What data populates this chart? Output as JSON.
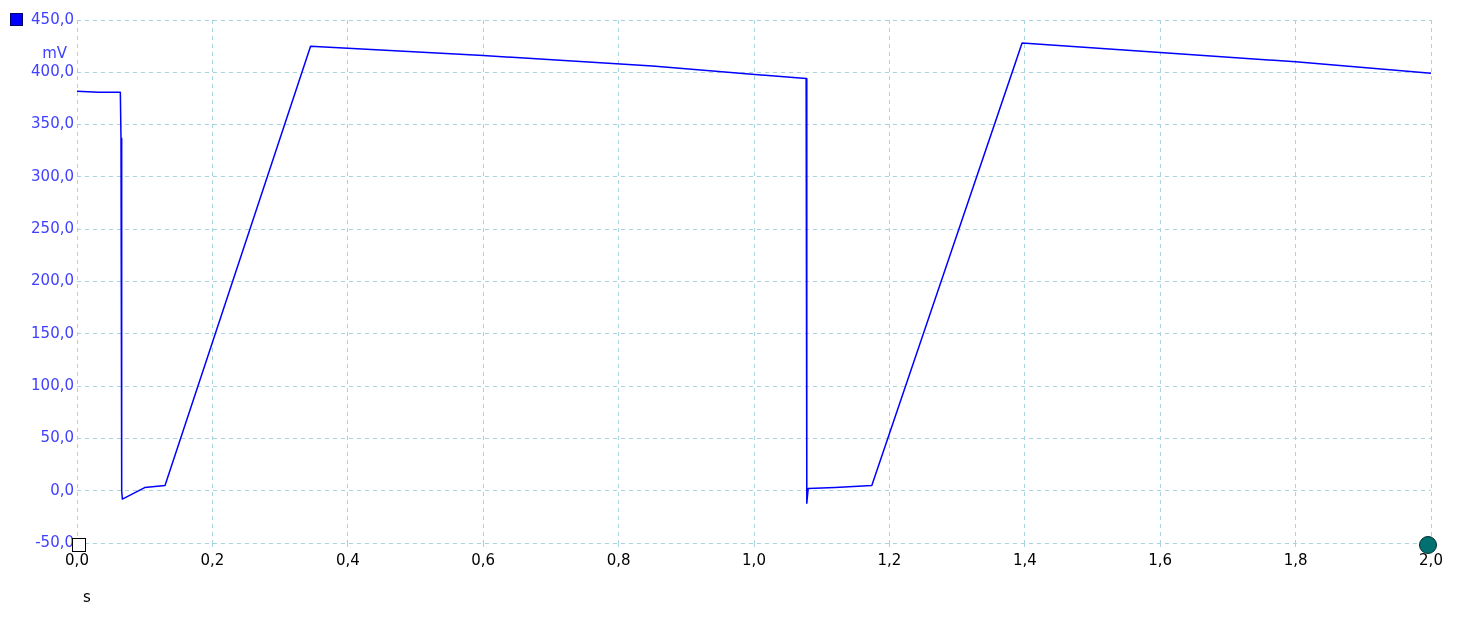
{
  "chart_data": {
    "type": "line",
    "xlabel": "s",
    "ylabel": "mV",
    "xlim": [
      0,
      2
    ],
    "xticks": [
      {
        "value": 0,
        "label": "0,0"
      },
      {
        "value": 0.2,
        "label": "0,2"
      },
      {
        "value": 0.4,
        "label": "0,4"
      },
      {
        "value": 0.6,
        "label": "0,6"
      },
      {
        "value": 0.8,
        "label": "0,8"
      },
      {
        "value": 1,
        "label": "1,0"
      },
      {
        "value": 1.2,
        "label": "1,2"
      },
      {
        "value": 1.4,
        "label": "1,4"
      },
      {
        "value": 1.6,
        "label": "1,6"
      },
      {
        "value": 1.8,
        "label": "1,8"
      },
      {
        "value": 2,
        "label": "2,0"
      }
    ],
    "ylim": [
      -50,
      450
    ],
    "yticks": [
      {
        "value": -50,
        "label": "-50,0"
      },
      {
        "value": 0,
        "label": "0,0"
      },
      {
        "value": 50,
        "label": "50,0"
      },
      {
        "value": 100,
        "label": "100,0"
      },
      {
        "value": 150,
        "label": "150,0"
      },
      {
        "value": 200,
        "label": "200,0"
      },
      {
        "value": 250,
        "label": "250,0"
      },
      {
        "value": 300,
        "label": "300,0"
      },
      {
        "value": 350,
        "label": "350,0"
      },
      {
        "value": 400,
        "label": "400,0"
      },
      {
        "value": 450,
        "label": "450,0"
      }
    ],
    "grid": true,
    "line_style": "solid",
    "series": [
      {
        "color": "#0000ff",
        "x": [
          0,
          0.032,
          0.064,
          0.065,
          0.066,
          0.067,
          0.1,
          0.13,
          0.345,
          0.6,
          0.85,
          1.077,
          1.078,
          1.08,
          1.12,
          1.174,
          1.396,
          1.6,
          1.8,
          2.0
        ],
        "values": [
          382,
          381,
          381,
          337,
          0,
          -8,
          3,
          5,
          425,
          416,
          406,
          394,
          -12,
          2,
          3,
          5,
          428,
          419,
          410,
          399
        ]
      }
    ]
  }
}
